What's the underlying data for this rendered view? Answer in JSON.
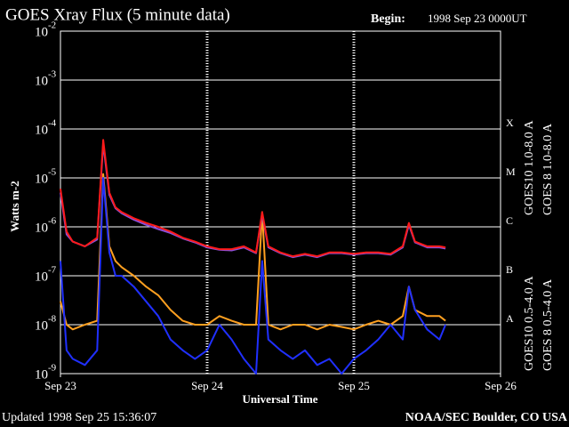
{
  "chart_data": {
    "type": "line",
    "title": "GOES Xray Flux (5 minute data)",
    "begin_label": "Begin:",
    "begin_value": "1998 Sep 23 0000UT",
    "ylabel": "Watts m-2",
    "xlabel": "Universal Time",
    "updated": "Updated 1998 Sep 25 15:36:07",
    "credit": "NOAA/SEC Boulder, CO USA",
    "log_y": true,
    "grid": true,
    "ylim": [
      1e-09,
      0.01
    ],
    "yticks": [
      {
        "value": 0.01,
        "label": "10",
        "exp": "-2"
      },
      {
        "value": 0.001,
        "label": "10",
        "exp": "-3"
      },
      {
        "value": 0.0001,
        "label": "10",
        "exp": "-4"
      },
      {
        "value": 1e-05,
        "label": "10",
        "exp": "-5"
      },
      {
        "value": 1e-06,
        "label": "10",
        "exp": "-6"
      },
      {
        "value": 1e-07,
        "label": "10",
        "exp": "-7"
      },
      {
        "value": 1e-08,
        "label": "10",
        "exp": "-8"
      },
      {
        "value": 1e-09,
        "label": "10",
        "exp": "-9"
      }
    ],
    "xlim": [
      0,
      72
    ],
    "xticks": [
      {
        "value": 0,
        "label": "Sep 23"
      },
      {
        "value": 24,
        "label": "Sep 24"
      },
      {
        "value": 48,
        "label": "Sep 25"
      },
      {
        "value": 72,
        "label": "Sep 26"
      }
    ],
    "class_labels": [
      {
        "value": 1e-08,
        "label": "A"
      },
      {
        "value": 1e-07,
        "label": "B"
      },
      {
        "value": 1e-06,
        "label": "C"
      },
      {
        "value": 1e-05,
        "label": "M"
      },
      {
        "value": 0.0001,
        "label": "X"
      }
    ],
    "x": [
      0,
      1,
      2,
      4,
      6,
      7,
      8,
      9,
      10,
      12,
      14,
      16,
      18,
      20,
      22,
      24,
      26,
      28,
      30,
      32,
      33,
      34,
      36,
      38,
      40,
      42,
      44,
      46,
      48,
      50,
      52,
      54,
      56,
      57,
      58,
      60,
      62,
      63
    ],
    "series": [
      {
        "name": "GOES10 1.0-8.0 A",
        "color": "#8a4fd8",
        "values": [
          5e-06,
          7e-07,
          5e-07,
          4e-07,
          5.5e-07,
          5e-05,
          4.5e-06,
          2.4e-06,
          1.9e-06,
          1.4e-06,
          1.1e-06,
          9e-07,
          7.5e-07,
          5.8e-07,
          4.8e-07,
          3.8e-07,
          3.4e-07,
          3.3e-07,
          3.8e-07,
          2.9e-07,
          1.8e-06,
          3.8e-07,
          2.9e-07,
          2.4e-07,
          2.7e-07,
          2.4e-07,
          2.9e-07,
          2.9e-07,
          2.7e-07,
          2.9e-07,
          2.9e-07,
          2.7e-07,
          3.8e-07,
          1.1e-06,
          4.8e-07,
          3.8e-07,
          3.8e-07,
          3.6e-07
        ]
      },
      {
        "name": "GOES 8 1.0-8.0 A",
        "color": "#ff1a1a",
        "values": [
          6e-06,
          8e-07,
          5e-07,
          4e-07,
          6e-07,
          6e-05,
          5e-06,
          2.5e-06,
          2e-06,
          1.5e-06,
          1.2e-06,
          1e-06,
          8e-07,
          6e-07,
          5e-07,
          4e-07,
          3.5e-07,
          3.5e-07,
          4e-07,
          3e-07,
          2e-06,
          4e-07,
          3e-07,
          2.5e-07,
          2.8e-07,
          2.5e-07,
          3e-07,
          3e-07,
          2.8e-07,
          3e-07,
          3e-07,
          2.8e-07,
          4e-07,
          1.2e-06,
          5e-07,
          4e-07,
          4e-07,
          3.8e-07
        ]
      },
      {
        "name": "GOES10 0.5-4.0 A",
        "color": "#ffa020",
        "values": [
          3e-08,
          1e-08,
          8e-09,
          1e-08,
          1.2e-08,
          1.2e-05,
          4e-07,
          2e-07,
          1.5e-07,
          1e-07,
          6e-08,
          4e-08,
          2e-08,
          1.2e-08,
          1e-08,
          1e-08,
          1.5e-08,
          1.2e-08,
          1e-08,
          1e-08,
          2e-06,
          1e-08,
          8e-09,
          1e-08,
          1e-08,
          8e-09,
          1e-08,
          9e-09,
          8e-09,
          1e-08,
          1.2e-08,
          1e-08,
          1.5e-08,
          6e-08,
          2e-08,
          1.5e-08,
          1.5e-08,
          1.2e-08
        ]
      },
      {
        "name": "GOES 8 0.5-4.0 A",
        "color": "#2030ff",
        "values": [
          2e-07,
          3e-09,
          2e-09,
          1.5e-09,
          3e-09,
          1e-05,
          3e-07,
          1e-07,
          1e-07,
          6e-08,
          3e-08,
          1.5e-08,
          5e-09,
          3e-09,
          2e-09,
          3e-09,
          1e-08,
          5e-09,
          2e-09,
          1e-09,
          2e-07,
          5e-09,
          3e-09,
          2e-09,
          3e-09,
          1.5e-09,
          2e-09,
          1e-09,
          2e-09,
          3e-09,
          5e-09,
          1e-08,
          5e-09,
          6e-08,
          2e-08,
          8e-09,
          5e-09,
          1e-08
        ]
      }
    ]
  }
}
